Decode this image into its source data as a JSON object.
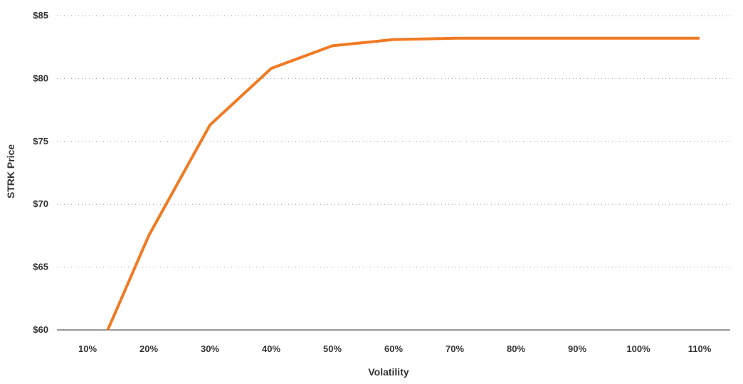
{
  "chart_data": {
    "type": "line",
    "title": "",
    "xlabel": "Volatility",
    "ylabel": "STRK Price",
    "x_tick_labels": [
      "10%",
      "20%",
      "30%",
      "40%",
      "50%",
      "60%",
      "70%",
      "80%",
      "90%",
      "100%",
      "110%"
    ],
    "y_tick_labels": [
      "$60",
      "$65",
      "$70",
      "$75",
      "$80",
      "$85"
    ],
    "y_ticks": [
      60,
      65,
      70,
      75,
      80,
      85
    ],
    "xlim": [
      5,
      115
    ],
    "ylim": [
      60,
      85
    ],
    "grid": "horizontal-dotted",
    "series": [
      {
        "color": "#f07a22",
        "x": [
          13.3,
          20,
          30,
          40,
          50,
          60,
          70,
          80,
          90,
          100,
          110
        ],
        "y": [
          60,
          67.5,
          76.3,
          80.8,
          82.6,
          83.1,
          83.2,
          83.2,
          83.2,
          83.2,
          83.2
        ]
      }
    ]
  }
}
